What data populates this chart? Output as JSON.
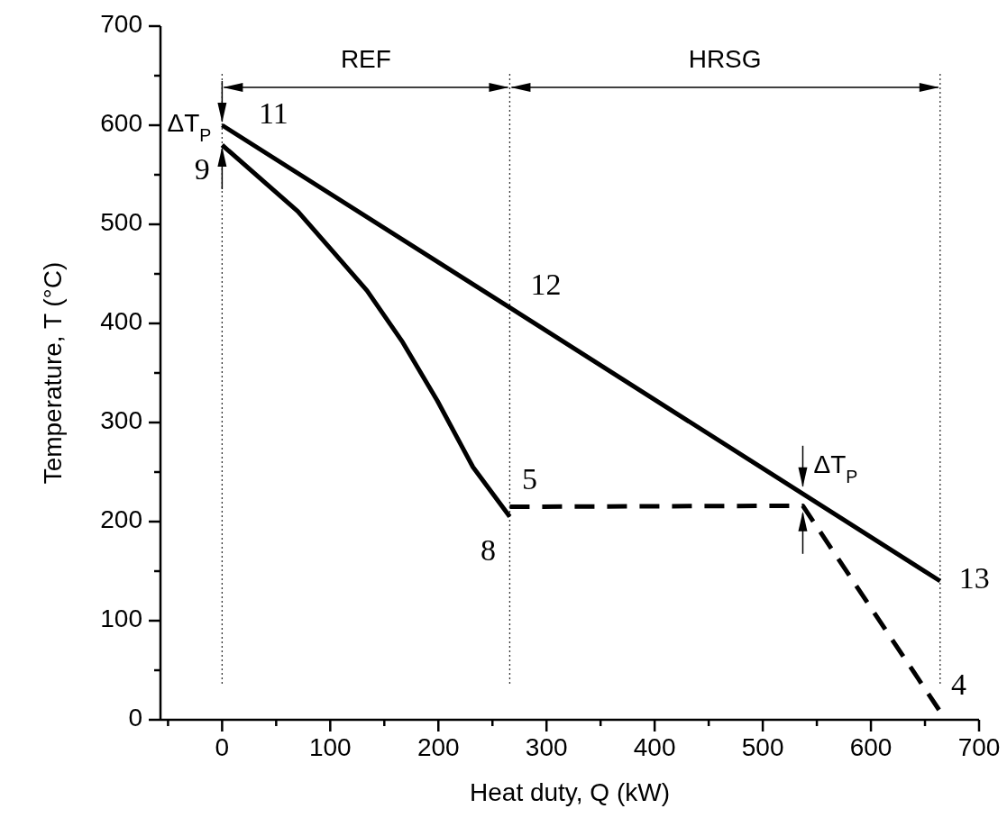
{
  "chart_data": {
    "type": "line",
    "xlabel": "Heat duty, Q (kW)",
    "ylabel": "Temperature, T (°C)",
    "xlim": [
      -57,
      700
    ],
    "ylim": [
      0,
      700
    ],
    "xticks": [
      {
        "value": -50,
        "label": null
      },
      0,
      {
        "value": 50,
        "label": null
      },
      100,
      {
        "value": 150,
        "label": null
      },
      200,
      {
        "value": 250,
        "label": null
      },
      300,
      {
        "value": 350,
        "label": null
      },
      400,
      {
        "value": 450,
        "label": null
      },
      500,
      {
        "value": 550,
        "label": null
      },
      600,
      {
        "value": 650,
        "label": null
      },
      700
    ],
    "yticks": [
      0,
      {
        "value": 50,
        "label": null
      },
      100,
      {
        "value": 150,
        "label": null
      },
      200,
      {
        "value": 250,
        "label": null
      },
      300,
      {
        "value": 350,
        "label": null
      },
      400,
      {
        "value": 450,
        "label": null
      },
      500,
      {
        "value": 550,
        "label": null
      },
      600,
      {
        "value": 650,
        "label": null
      },
      700
    ],
    "grid": false,
    "marker": "none",
    "series": [
      {
        "color": "#000000",
        "line_style": "solid",
        "x": [
          0,
          266,
          664
        ],
        "values": [
          600,
          416,
          140
        ]
      },
      {
        "color": "#000000",
        "line_style": "solid",
        "x": [
          0,
          70,
          103,
          134,
          167,
          199,
          232,
          266
        ],
        "values": [
          580,
          513,
          472,
          433,
          381,
          322,
          255,
          205
        ]
      },
      {
        "color": "#000000",
        "line_style": "dashed",
        "x": [
          266,
          537,
          663
        ],
        "values": [
          215,
          216,
          10
        ]
      }
    ],
    "ref_lines": [
      {
        "axis": "x",
        "value": 0,
        "line_style": "dotted"
      },
      {
        "axis": "x",
        "value": 266,
        "line_style": "dotted"
      },
      {
        "axis": "x",
        "value": 664,
        "line_style": "dotted"
      }
    ],
    "annotations": [
      {
        "text": "ΔT$_{P}$",
        "x": 0,
        "y": 590
      },
      {
        "text": "ΔT$_{P}$",
        "x": 537,
        "y": 222
      },
      "REF",
      "HRSG",
      {
        "text": "11",
        "x": 0,
        "y": 600
      },
      {
        "text": "9",
        "x": 0,
        "y": 580
      },
      {
        "text": "12",
        "x": 266,
        "y": 416
      },
      {
        "text": "5",
        "x": 266,
        "y": 215
      },
      {
        "text": "8",
        "x": 266,
        "y": 205
      },
      {
        "text": "13",
        "x": 664,
        "y": 140
      },
      {
        "text": "4",
        "x": 663,
        "y": 10
      }
    ]
  }
}
